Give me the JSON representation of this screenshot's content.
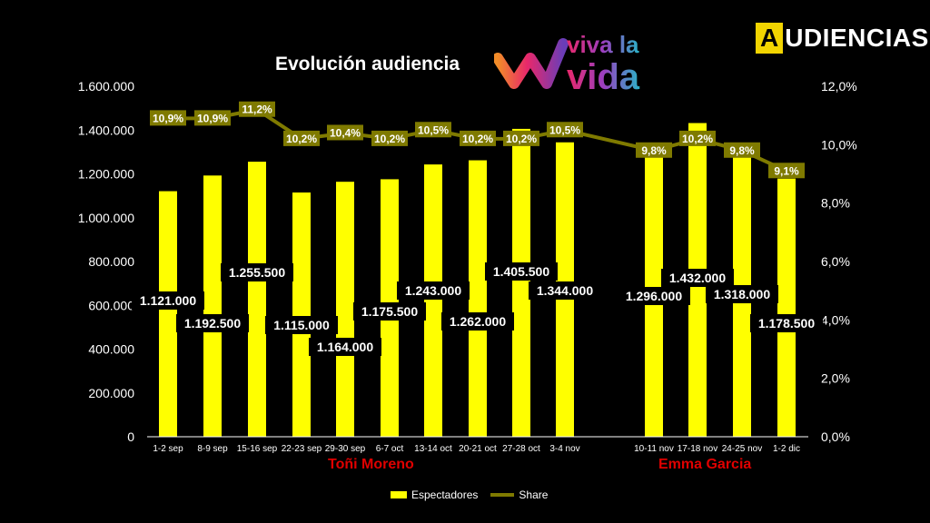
{
  "brand": {
    "first_letter": "A",
    "rest": "UDIENCIAS"
  },
  "title": "Evolución audiencia",
  "logo": {
    "line1": "viva la",
    "line2": "vida"
  },
  "presenters": [
    "Toñi Moreno",
    "Emma Garcia"
  ],
  "legend": {
    "bar": "Espectadores",
    "line": "Share"
  },
  "colors": {
    "bar": "#ffff00",
    "line": "#7f7a00",
    "presenter": "#e00000",
    "background": "#000000"
  },
  "chart_data": {
    "type": "bar",
    "categories": [
      "1-2 sep",
      "8-9 sep",
      "15-16 sep",
      "22-23 sep",
      "29-30 sep",
      "6-7 oct",
      "13-14 oct",
      "20-21 oct",
      "27-28 oct",
      "3-4 nov",
      "10-11 nov",
      "17-18 nov",
      "24-25 nov",
      "1-2 dic"
    ],
    "series": [
      {
        "name": "Espectadores",
        "axis": "left",
        "values": [
          1121000,
          1192500,
          1255500,
          1115000,
          1164000,
          1175500,
          1243000,
          1262000,
          1405500,
          1344000,
          1296000,
          1432000,
          1318000,
          1178500
        ],
        "labels": [
          "1.121.000",
          "1.192.500",
          "1.255.500",
          "1.115.000",
          "1.164.000",
          "1.175.500",
          "1.243.000",
          "1.262.000",
          "1.405.500",
          "1.344.000",
          "1.296.000",
          "1.432.000",
          "1.318.000",
          "1.178.500"
        ]
      },
      {
        "name": "Share",
        "type": "line",
        "axis": "right",
        "values": [
          10.9,
          10.9,
          11.2,
          10.2,
          10.4,
          10.2,
          10.5,
          10.2,
          10.2,
          10.5,
          9.8,
          10.2,
          9.8,
          9.1
        ],
        "labels": [
          "10,9%",
          "10,9%",
          "11,2%",
          "10,2%",
          "10,4%",
          "10,2%",
          "10,5%",
          "10,2%",
          "10,2%",
          "10,5%",
          "9,8%",
          "10,2%",
          "9,8%",
          "9,1%"
        ]
      }
    ],
    "y_left": {
      "min": 0,
      "max": 1600000,
      "ticks": [
        "0",
        "200.000",
        "400.000",
        "600.000",
        "800.000",
        "1.000.000",
        "1.200.000",
        "1.400.000",
        "1.600.000"
      ]
    },
    "y_right": {
      "min": 0,
      "max": 12,
      "ticks": [
        "0,0%",
        "2,0%",
        "4,0%",
        "6,0%",
        "8,0%",
        "10,0%",
        "12,0%"
      ]
    },
    "grid": false,
    "legend_position": "bottom"
  }
}
